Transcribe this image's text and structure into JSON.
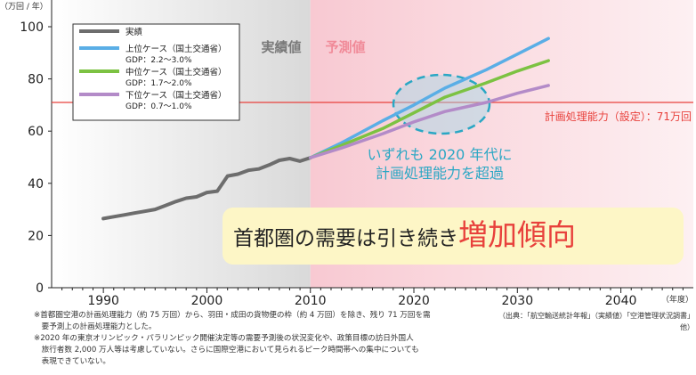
{
  "colors": {
    "actual": "#6d6d6d",
    "high": "#5aaee6",
    "mid": "#7cc242",
    "low": "#b38bc8",
    "capacity": "#e8413c",
    "projection_bg": "#fbe1e5",
    "actual_bg": "#e6e6e6",
    "highlight_text": "#e8413c",
    "callout_text": "#2aa7c4",
    "callout_fill": "#9fd7e6",
    "banner_bg": "#fdf6c6"
  },
  "chart_data": {
    "type": "line",
    "ylabel": "（万回 / 年）",
    "xlabel": "（年度）",
    "ylim": [
      0,
      100
    ],
    "xlim": [
      1985,
      2047
    ],
    "yticks": [
      0,
      20,
      40,
      60,
      80,
      100
    ],
    "xticks": [
      1990,
      2000,
      2010,
      2020,
      2030,
      2040
    ],
    "grid": false,
    "legend_position": "top-left",
    "region_labels": {
      "actual": "実績値",
      "projection": "予測値"
    },
    "capacity": {
      "value": 71,
      "label": "計画処理能力（設定）：71万回"
    },
    "series": [
      {
        "key": "actual",
        "name": "実績",
        "sub": "",
        "points": [
          [
            1990,
            26.5
          ],
          [
            1991,
            27.2
          ],
          [
            1992,
            27.9
          ],
          [
            1993,
            28.6
          ],
          [
            1994,
            29.3
          ],
          [
            1995,
            30.0
          ],
          [
            1996,
            31.5
          ],
          [
            1997,
            33.0
          ],
          [
            1998,
            34.3
          ],
          [
            1999,
            34.8
          ],
          [
            2000,
            36.5
          ],
          [
            2001,
            37.0
          ],
          [
            2002,
            42.8
          ],
          [
            2003,
            43.5
          ],
          [
            2004,
            45.0
          ],
          [
            2005,
            45.5
          ],
          [
            2006,
            47.0
          ],
          [
            2007,
            48.8
          ],
          [
            2008,
            49.5
          ],
          [
            2009,
            48.5
          ],
          [
            2010,
            49.8
          ]
        ]
      },
      {
        "key": "high",
        "name": "上位ケース（国土交通省）",
        "sub": "GDP：2.2～3.0%",
        "points": [
          [
            2010,
            49.8
          ],
          [
            2013,
            55.5
          ],
          [
            2017,
            64
          ],
          [
            2020,
            70
          ],
          [
            2023,
            76.5
          ],
          [
            2027,
            83.5
          ],
          [
            2030,
            89.5
          ],
          [
            2033,
            95.5
          ]
        ]
      },
      {
        "key": "mid",
        "name": "中位ケース（国土交通省）",
        "sub": "GDP：1.7～2.0%",
        "points": [
          [
            2010,
            49.8
          ],
          [
            2013,
            54.5
          ],
          [
            2017,
            61
          ],
          [
            2020,
            67
          ],
          [
            2023,
            73
          ],
          [
            2027,
            78.5
          ],
          [
            2030,
            83
          ],
          [
            2033,
            87
          ]
        ]
      },
      {
        "key": "low",
        "name": "下位ケース（国土交通省）",
        "sub": "GDP：0.7～1.0%",
        "points": [
          [
            2010,
            49.8
          ],
          [
            2013,
            53.5
          ],
          [
            2017,
            59
          ],
          [
            2020,
            63.5
          ],
          [
            2023,
            67.5
          ],
          [
            2027,
            71
          ],
          [
            2030,
            74.5
          ],
          [
            2033,
            77.5
          ]
        ]
      }
    ],
    "callout": {
      "lines": [
        "いずれも 2020 年代に",
        "計画処理能力を超過"
      ]
    },
    "banner": {
      "text": "首都圏の需要は引き続き",
      "highlight": "増加傾向"
    }
  },
  "footnotes": [
    "※首都圏空港の計画処理能力（約 75 万回）から、羽田・成田の貨物便の枠（約 4 万回）を除き、残り 71 万回を需",
    "　要予測上の計画処理能力とした。",
    "※2020 年の東京オリンピック・パラリンピック開催決定等の需要予測後の状況変化や、政策目標の訪日外国人",
    "　旅行者数 2,000 万人等は考慮していない。さらに国際空港において見られるピーク時間帯への集中についても",
    "　表現できていない。"
  ],
  "source": "（出典：「航空輸送統計年報」（実績値）「空港管理状況調書」他）"
}
